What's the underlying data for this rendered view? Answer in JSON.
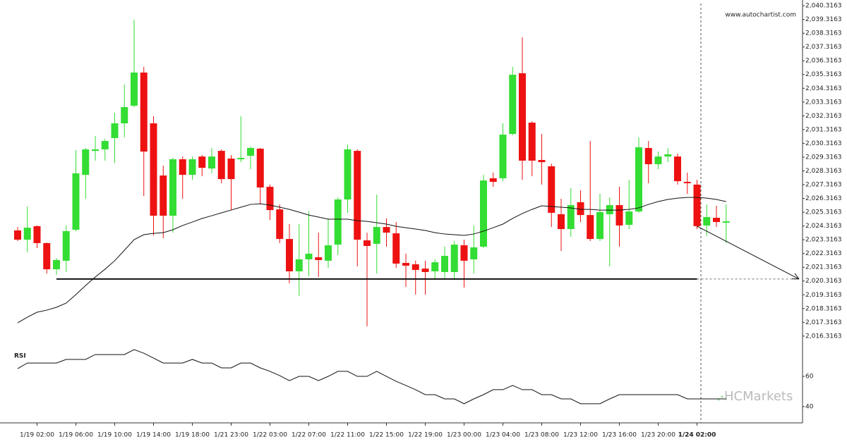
{
  "chart_data": [
    {
      "type": "candlestick",
      "watermark": "www.autochartist.com",
      "logo": "HCMarkets",
      "up_color": "#33dd33",
      "down_color": "#ee1111",
      "categories": [
        null,
        null,
        "1/19 02:00",
        null,
        null,
        null,
        "1/19 06:00",
        null,
        null,
        null,
        "1/19 10:00",
        null,
        null,
        null,
        "1/19 14:00",
        null,
        null,
        null,
        "1/19 18:00",
        null,
        null,
        null,
        "1/21 23:00",
        null,
        null,
        null,
        "1/22 03:00",
        null,
        null,
        null,
        "1/22 07:00",
        null,
        null,
        null,
        "1/22 11:00",
        null,
        null,
        null,
        "1/22 15:00",
        null,
        null,
        null,
        "1/22 19:00",
        null,
        null,
        null,
        "1/23 00:00",
        null,
        null,
        null,
        "1/23 04:00",
        null,
        null,
        null,
        "1/23 08:00",
        null,
        null,
        null,
        "1/23 12:00",
        null,
        null,
        null,
        "1/23 16:00",
        null,
        null,
        null,
        "1/23 20:00",
        null,
        null,
        null,
        "1/24 02:00",
        null,
        null,
        null
      ],
      "open": [
        2023.99,
        2023.32,
        2024.3,
        2023.07,
        2021.17,
        2021.79,
        2024.04,
        2028.03,
        2029.77,
        2029.88,
        2030.7,
        2031.77,
        2033.05,
        2035.46,
        2031.77,
        2027.98,
        2025.06,
        2029.16,
        2028.03,
        2029.36,
        2028.49,
        2029.77,
        2029.21,
        2029.16,
        2029.41,
        2029.93,
        2027.16,
        2025.52,
        2023.37,
        2021.02,
        2021.89,
        2022.04,
        2021.79,
        2022.96,
        2026.24,
        2029.77,
        2023.27,
        2023.02,
        2024.24,
        2023.78,
        2021.63,
        2021.53,
        2021.22,
        2021.02,
        2020.97,
        2020.97,
        2022.91,
        2021.89,
        2022.81,
        2027.78,
        2027.78,
        2031.0,
        2035.41,
        2031.82,
        2029.11,
        2028.65,
        2025.17,
        2024.09,
        2026.04,
        2025.11,
        2023.37,
        2025.17,
        2025.83,
        2024.4,
        2025.37,
        2029.98,
        2028.8,
        2029.36,
        2029.36,
        2027.52,
        2027.32,
        2024.35,
        2024.91,
        2024.55
      ],
      "high": [
        2024.24,
        2025.73,
        2024.35,
        2023.12,
        2021.99,
        2024.35,
        2029.82,
        2029.98,
        2030.85,
        2030.64,
        2032.54,
        2034.59,
        2039.3,
        2035.87,
        2032.28,
        2028.7,
        2029.26,
        2029.36,
        2029.36,
        2029.47,
        2029.98,
        2029.88,
        2029.47,
        2032.28,
        2030.08,
        2029.98,
        2027.32,
        2025.88,
        2024.45,
        2024.45,
        2025.37,
        2023.83,
        2024.86,
        2026.39,
        2030.23,
        2029.88,
        2023.83,
        2026.6,
        2024.86,
        2024.6,
        2022.3,
        2021.79,
        2021.79,
        2021.89,
        2022.81,
        2023.22,
        2023.32,
        2024.35,
        2028.03,
        2028.19,
        2031.77,
        2035.87,
        2038.02,
        2031.92,
        2031.0,
        2028.85,
        2026.29,
        2027.06,
        2026.91,
        2030.49,
        2026.65,
        2026.39,
        2027.16,
        2027.67,
        2030.75,
        2030.49,
        2029.72,
        2029.98,
        2029.57,
        2028.19,
        2027.67,
        2025.88,
        2025.78,
        2025.88
      ],
      "low": [
        2023.22,
        2022.4,
        2022.71,
        2020.86,
        2020.76,
        2020.97,
        2023.94,
        2026.29,
        2029.06,
        2029.06,
        2028.9,
        2030.75,
        2032.95,
        2026.5,
        2023.63,
        2023.42,
        2023.83,
        2026.29,
        2027.67,
        2027.93,
        2028.14,
        2027.42,
        2025.47,
        2028.95,
        2028.44,
        2025.88,
        2024.76,
        2023.07,
        2020.15,
        2019.23,
        2020.66,
        2020.61,
        2021.27,
        2022.2,
        2025.27,
        2021.38,
        2017.02,
        2020.86,
        2022.81,
        2021.27,
        2019.89,
        2019.33,
        2019.33,
        2020.4,
        2020.51,
        2020.4,
        2019.84,
        2020.86,
        2022.71,
        2027.16,
        2027.57,
        2030.9,
        2027.67,
        2027.93,
        2027.32,
        2024.24,
        2022.5,
        2023.53,
        2024.6,
        2023.22,
        2023.22,
        2021.38,
        2022.81,
        2024.09,
        2025.27,
        2027.42,
        2028.44,
        2028.95,
        2027.32,
        2026.65,
        2024.09,
        2023.58,
        2024.24,
        2023.07
      ],
      "close": [
        2023.32,
        2024.19,
        2023.07,
        2021.17,
        2021.84,
        2023.94,
        2028.14,
        2029.88,
        2029.88,
        2030.49,
        2031.77,
        2032.95,
        2035.46,
        2029.72,
        2025.06,
        2025.06,
        2029.16,
        2028.03,
        2029.16,
        2028.54,
        2029.36,
        2027.72,
        2027.72,
        2029.26,
        2029.98,
        2027.11,
        2025.47,
        2023.37,
        2021.02,
        2021.89,
        2022.3,
        2021.84,
        2022.91,
        2026.24,
        2029.88,
        2023.32,
        2022.86,
        2024.24,
        2023.83,
        2021.58,
        2021.43,
        2021.12,
        2020.97,
        2021.68,
        2022.14,
        2022.96,
        2021.79,
        2022.76,
        2027.62,
        2027.52,
        2030.95,
        2035.3,
        2029.06,
        2029.06,
        2028.95,
        2025.27,
        2024.09,
        2025.83,
        2025.11,
        2023.37,
        2025.32,
        2025.83,
        2024.35,
        2025.37,
        2030.03,
        2028.8,
        2029.36,
        2029.52,
        2027.57,
        2027.42,
        2024.3,
        2024.96,
        2024.6,
        2024.65
      ],
      "moving_average": {
        "color": "#111111",
        "values": [
          2017.28,
          2017.69,
          2018.05,
          2018.2,
          2018.41,
          2018.71,
          2019.33,
          2019.99,
          2020.61,
          2021.17,
          2021.79,
          2022.55,
          2023.32,
          2023.68,
          2023.78,
          2023.83,
          2024.04,
          2024.35,
          2024.6,
          2024.86,
          2025.06,
          2025.27,
          2025.47,
          2025.68,
          2025.88,
          2025.93,
          2025.83,
          2025.68,
          2025.52,
          2025.32,
          2025.11,
          2024.96,
          2024.81,
          2024.81,
          2024.81,
          2024.7,
          2024.65,
          2024.55,
          2024.45,
          2024.29,
          2024.19,
          2024.09,
          2023.99,
          2023.83,
          2023.73,
          2023.68,
          2023.63,
          2023.73,
          2023.94,
          2024.19,
          2024.45,
          2024.86,
          2025.22,
          2025.52,
          2025.78,
          2025.73,
          2025.68,
          2025.63,
          2025.52,
          2025.52,
          2025.47,
          2025.47,
          2025.47,
          2025.52,
          2025.63,
          2025.88,
          2026.09,
          2026.24,
          2026.34,
          2026.39,
          2026.39,
          2026.34,
          2026.24,
          2026.09
        ]
      },
      "support_line": {
        "value": 2020.46,
        "color": "#111111"
      },
      "ylim": [
        2015.9,
        2040.73
      ],
      "yticks": [
        {
          "value": 2016.3163,
          "label": "2,016.3163"
        },
        {
          "value": 2017.3163,
          "label": "2,017.3163"
        },
        {
          "value": 2018.3163,
          "label": "2,018.3163"
        },
        {
          "value": 2019.3163,
          "label": "2,019.3163"
        },
        {
          "value": 2020.3163,
          "label": "2,020.3163"
        },
        {
          "value": 2021.3163,
          "label": "2,021.3163"
        },
        {
          "value": 2022.3163,
          "label": "2,022.3163"
        },
        {
          "value": 2023.3163,
          "label": "2,023.3163"
        },
        {
          "value": 2024.3163,
          "label": "2,024.3163"
        },
        {
          "value": 2025.3163,
          "label": "2,025.3163"
        },
        {
          "value": 2026.3163,
          "label": "2,026.3163"
        },
        {
          "value": 2027.3163,
          "label": "2,027.3163"
        },
        {
          "value": 2028.3163,
          "label": "2,028.3163"
        },
        {
          "value": 2029.3163,
          "label": "2,029.3163"
        },
        {
          "value": 2030.3163,
          "label": "2,030.3163"
        },
        {
          "value": 2031.3163,
          "label": "2,031.3163"
        },
        {
          "value": 2032.3163,
          "label": "2,032.3163"
        },
        {
          "value": 2033.3163,
          "label": "2,033.3163"
        },
        {
          "value": 2034.3163,
          "label": "2,034.3163"
        },
        {
          "value": 2035.3163,
          "label": "2,035.3163"
        },
        {
          "value": 2036.3163,
          "label": "2,036.3163"
        },
        {
          "value": 2037.3163,
          "label": "2,037.3163"
        },
        {
          "value": 2038.3163,
          "label": "2,038.3163"
        },
        {
          "value": 2039.3163,
          "label": "2,039.3163"
        },
        {
          "value": 2040.3163,
          "label": "2,040.3163"
        }
      ]
    },
    {
      "type": "line",
      "title": "RSI",
      "color": "#111111",
      "values": [
        65.1,
        68.8,
        68.8,
        68.8,
        68.8,
        71.2,
        71.2,
        71.2,
        74.4,
        74.4,
        74.4,
        74.4,
        77.7,
        75.3,
        72.1,
        68.8,
        68.8,
        68.8,
        71.2,
        68.8,
        68.8,
        65.6,
        65.6,
        68.8,
        68.8,
        65.6,
        63.3,
        60.5,
        57.2,
        60,
        60,
        57.2,
        60,
        63.3,
        63.3,
        60,
        60,
        63.3,
        60,
        56.7,
        54.0,
        51.2,
        47.9,
        47.9,
        45.1,
        45.1,
        41.9,
        45.1,
        47.9,
        51.2,
        51.2,
        54.0,
        51.2,
        51.2,
        47.9,
        47.9,
        45.1,
        45.1,
        41.9,
        41.9,
        41.9,
        45.1,
        47.9,
        47.9,
        47.9,
        47.9,
        47.9,
        47.9,
        47.9,
        45.1,
        45.1,
        45.1,
        45.1,
        45.1
      ],
      "ylim": [
        31.6,
        80.5
      ],
      "yticks": [
        40,
        60
      ]
    }
  ]
}
